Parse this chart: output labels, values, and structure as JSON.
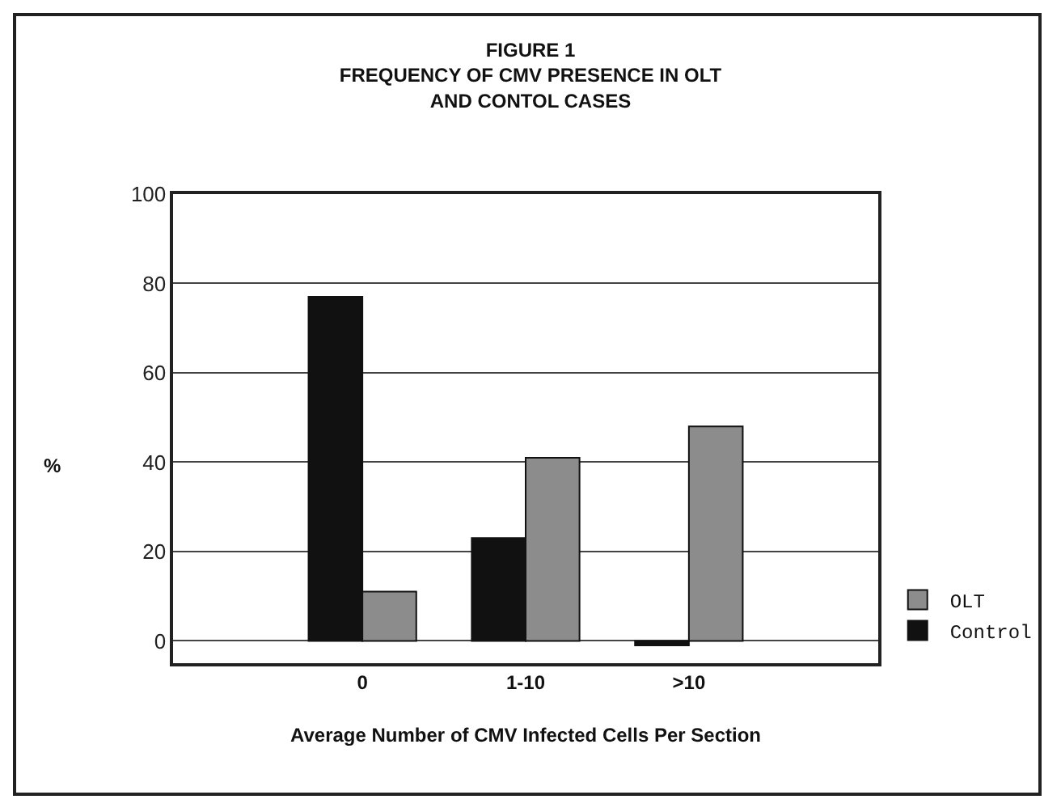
{
  "chart_data": {
    "type": "bar",
    "title": "FIGURE 1\nFREQUENCY OF CMV PRESENCE IN OLT\nAND CONTOL CASES",
    "xlabel": "Average Number of CMV Infected Cells Per Section",
    "ylabel": "%",
    "categories": [
      "0",
      "1-10",
      ">10"
    ],
    "series": [
      {
        "name": "Control",
        "color": "#111111",
        "values": [
          77,
          23,
          -1
        ]
      },
      {
        "name": "OLT",
        "color": "#8c8c8c",
        "values": [
          11,
          41,
          48
        ]
      }
    ],
    "ylim": [
      -5,
      100
    ],
    "yticks": [
      0,
      20,
      40,
      60,
      80,
      100
    ],
    "grid": "y",
    "legend": "bottom right"
  }
}
